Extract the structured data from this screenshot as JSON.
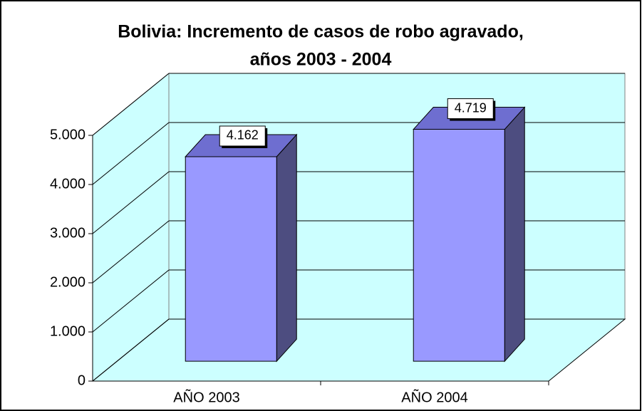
{
  "chart_data": {
    "type": "bar3d",
    "title": [
      "Bolivia: Incremento de casos de robo agravado,",
      "años 2003 - 2004"
    ],
    "categories": [
      "AÑO 2003",
      "AÑO 2004"
    ],
    "values": [
      4162,
      4719
    ],
    "value_labels": [
      "4.162",
      "4.719"
    ],
    "color": "#9999ff",
    "ylim": [
      0,
      5000
    ],
    "yticks": [
      0,
      {
        "value": 1000,
        "label": "1.000"
      },
      {
        "value": 2000,
        "label": "2.000"
      },
      {
        "value": 3000,
        "label": "3.000"
      },
      {
        "value": 4000,
        "label": "4.000"
      },
      {
        "value": 5000,
        "label": "5.000"
      }
    ],
    "grid": true
  }
}
